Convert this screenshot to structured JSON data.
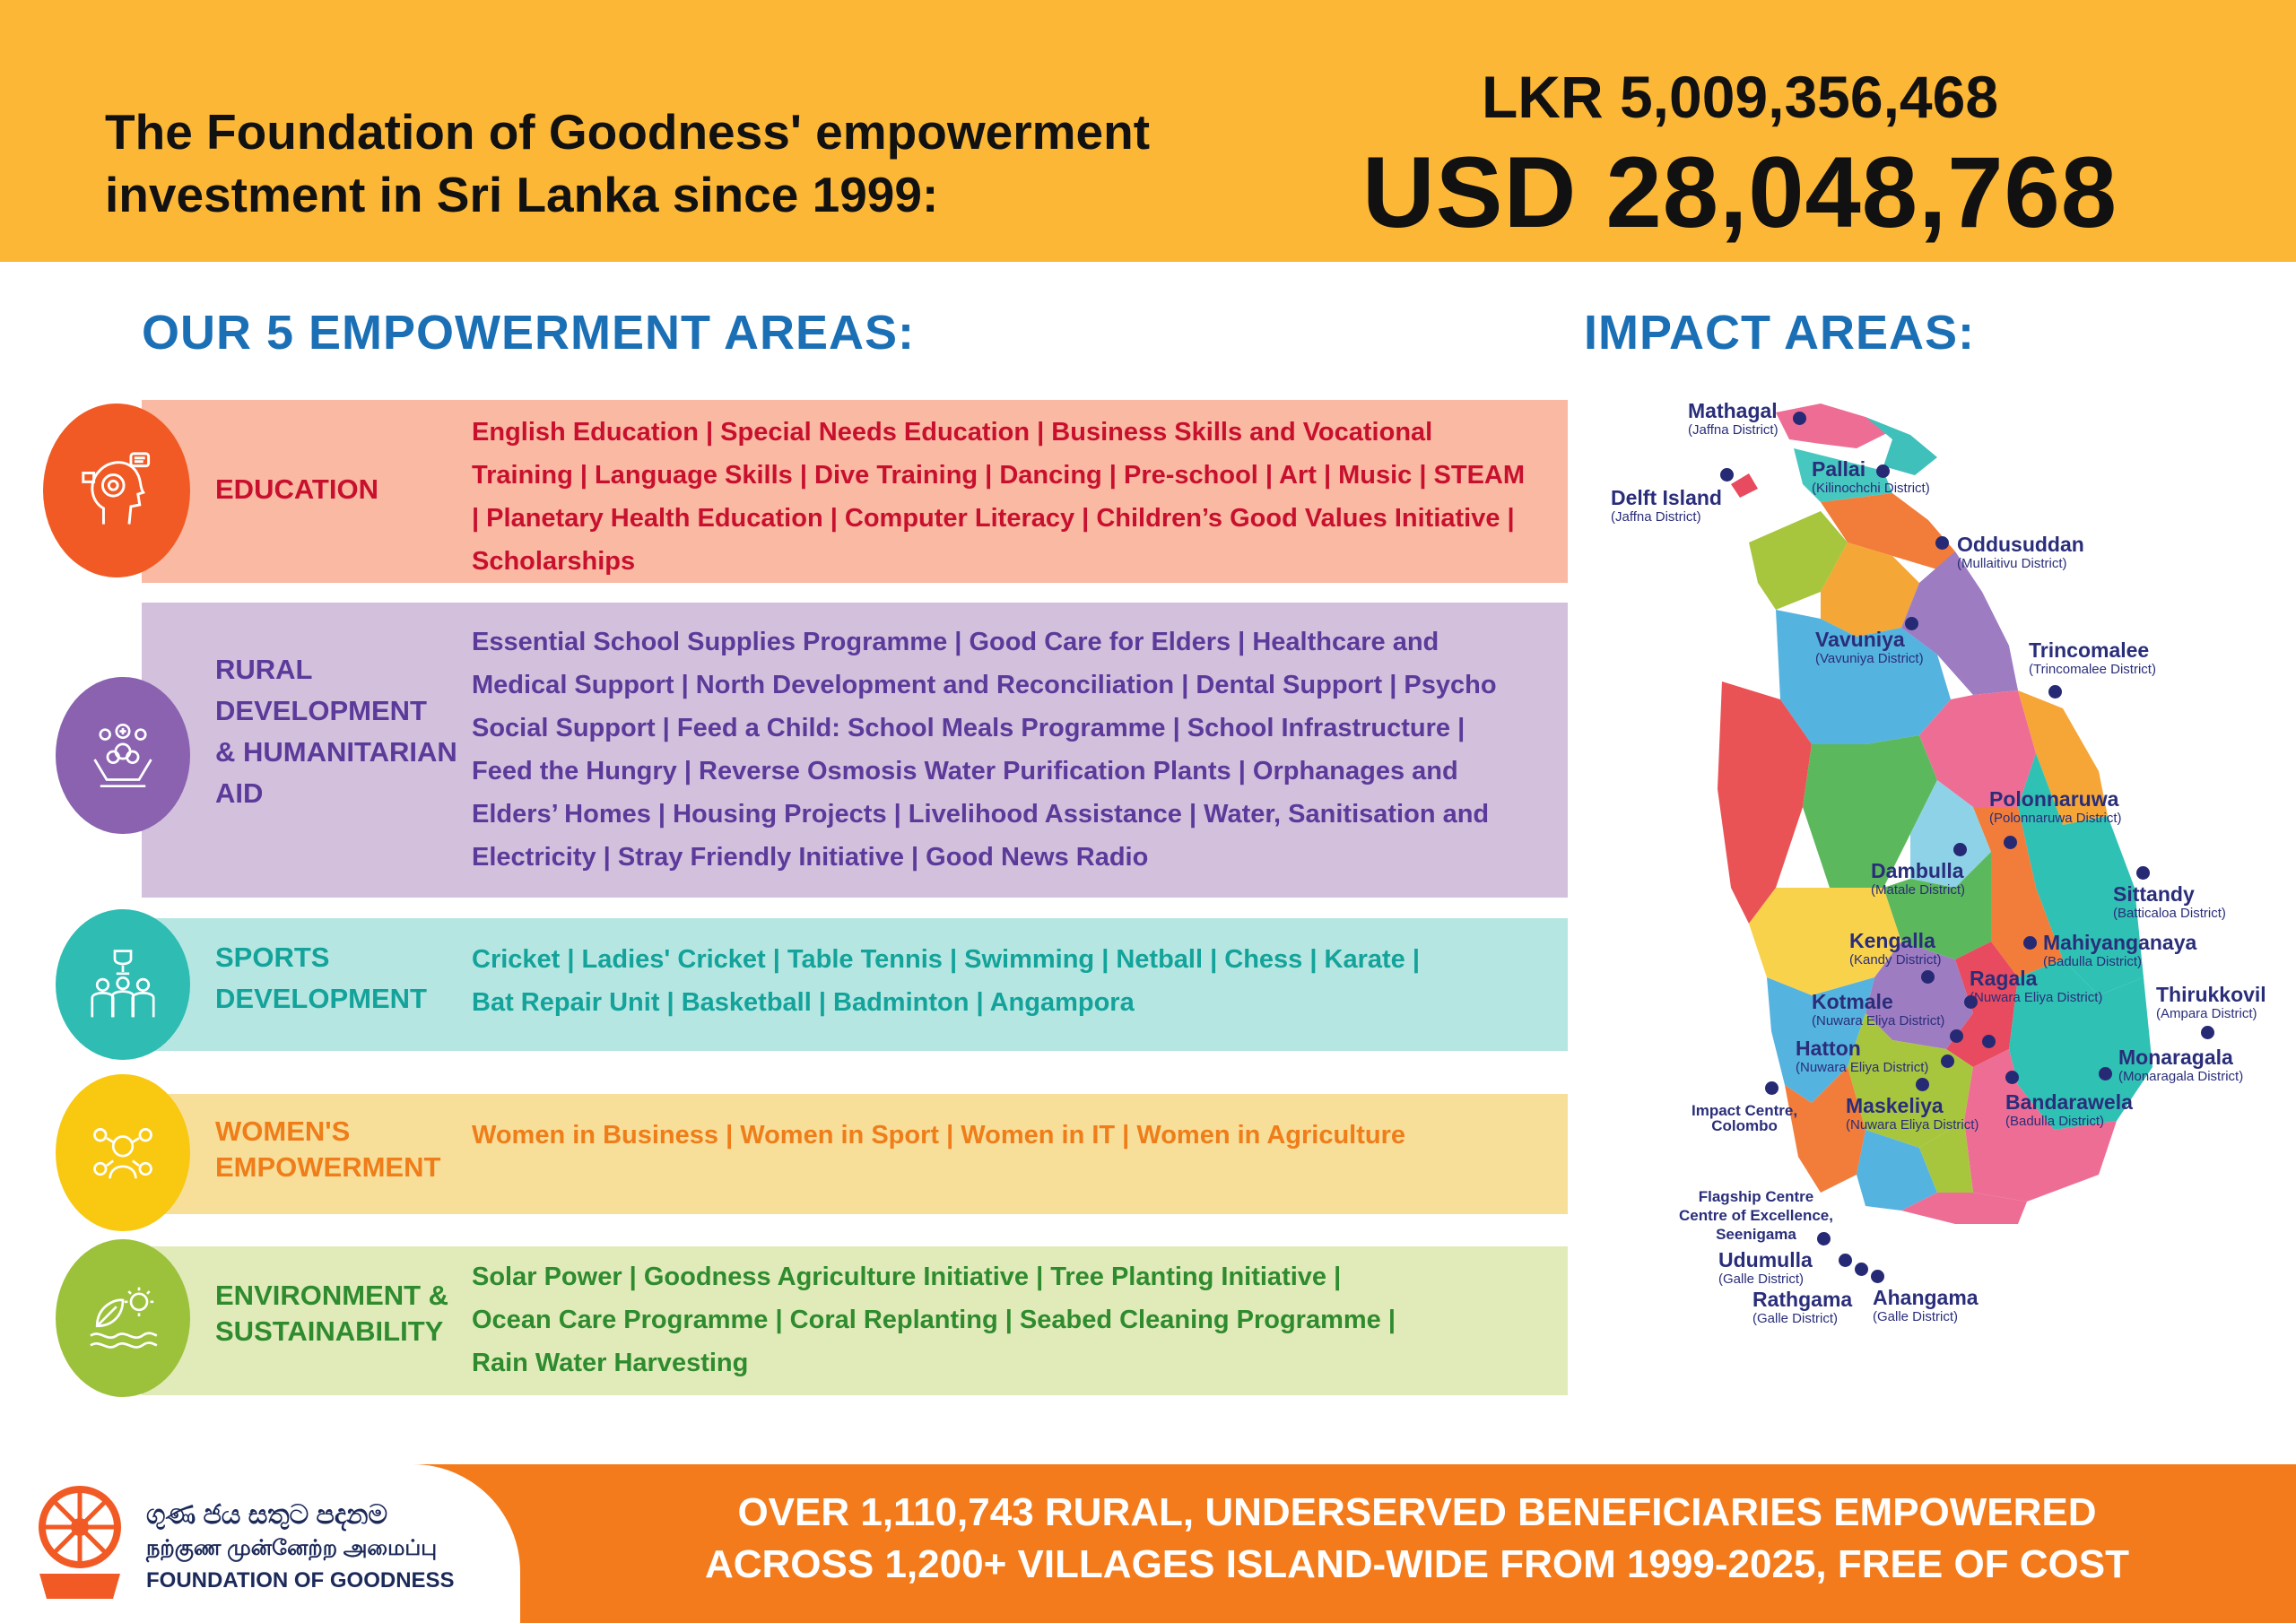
{
  "header": {
    "headline_line1": "The Foundation of Goodness' empowerment",
    "headline_line2": "investment in Sri Lanka since 1999:",
    "lkr": "LKR 5,009,356,468",
    "usd": "USD 28,048,768"
  },
  "empowerment_title": "OUR 5 EMPOWERMENT AREAS:",
  "impact_title": "IMPACT AREAS:",
  "areas": [
    {
      "label_lines": [
        "EDUCATION"
      ],
      "items_lines": [
        "English Education | Special Needs Education | Business Skills and Vocational",
        "Training | Language Skills | Dive Training | Dancing | Pre-school | Art | Music  | STEAM",
        "| Planetary Health Education | Computer Literacy | Children’s Good Values Initiative |",
        "Scholarships"
      ],
      "icon": "education-head-icon",
      "bg": "#f9b9a3",
      "text": "#c8102e",
      "circle": "#f15a24"
    },
    {
      "label_lines": [
        "RURAL",
        "DEVELOPMENT",
        "& HUMANITARIAN",
        "AID"
      ],
      "items_lines": [
        "Essential School Supplies Programme | Good Care for Elders  | Healthcare and",
        "Medical Support | North Development and Reconciliation | Dental Support | Psycho",
        "Social Support  | Feed a Child: School Meals Programme  | School Infrastructure |",
        "Feed the Hungry | Reverse Osmosis Water Purification Plants | Orphanages and",
        "Elders’ Homes | Housing Projects | Livelihood Assistance | Water, Sanitisation and",
        "Electricity | Stray Friendly Initiative | Good News Radio"
      ],
      "icon": "helping-hands-icon",
      "bg": "#d3c0dd",
      "text": "#5b3a9a",
      "circle": "#8a62b0"
    },
    {
      "label_lines": [
        "SPORTS",
        "DEVELOPMENT"
      ],
      "items_lines": [
        "Cricket | Ladies' Cricket | Table Tennis | Swimming | Netball | Chess | Karate |",
        "Bat Repair Unit | Basketball | Badminton | Angampora"
      ],
      "icon": "trophy-team-icon",
      "bg": "#b5e6e2",
      "text": "#13a39a",
      "circle": "#2ebcb3"
    },
    {
      "label_lines": [
        "WOMEN'S",
        "EMPOWERMENT"
      ],
      "items_lines": [
        "Women in Business | Women in Sport | Women in IT | Women in Agriculture"
      ],
      "icon": "women-icon",
      "bg": "#f7df9a",
      "text": "#ef7d1a",
      "circle": "#f9c811"
    },
    {
      "label_lines": [
        "ENVIRONMENT &",
        "SUSTAINABILITY"
      ],
      "items_lines": [
        "Solar Power | Goodness Agriculture Initiative | Tree Planting Initiative |",
        "Ocean Care Programme | Coral Replanting | Seabed Cleaning Programme |",
        "Rain Water Harvesting"
      ],
      "icon": "leaf-wave-sun-icon",
      "bg": "#e1eab9",
      "text": "#2e8b2e",
      "circle": "#9cc13b"
    }
  ],
  "locations": [
    {
      "name": "Mathagal",
      "district": "(Jaffna District)"
    },
    {
      "name": "Pallai",
      "district": "(Kilinochchi District)"
    },
    {
      "name": "Delft Island",
      "district": "(Jaffna District)"
    },
    {
      "name": "Oddusuddan",
      "district": "(Mullaitivu District)"
    },
    {
      "name": "Vavuniya",
      "district": "(Vavuniya District)"
    },
    {
      "name": "Trincomalee",
      "district": "(Trincomalee District)"
    },
    {
      "name": "Polonnaruwa",
      "district": "(Polonnaruwa District)"
    },
    {
      "name": "Dambulla",
      "district": "(Matale District)"
    },
    {
      "name": "Sittandy",
      "district": "(Batticaloa District)"
    },
    {
      "name": "Kengalla",
      "district": "(Kandy District)"
    },
    {
      "name": "Mahiyanganaya",
      "district": "(Badulla District)"
    },
    {
      "name": "Ragala",
      "district": "(Nuwara Eliya District)"
    },
    {
      "name": "Thirukkovil",
      "district": "(Ampara District)"
    },
    {
      "name": "Kotmale",
      "district": "(Nuwara Eliya District)"
    },
    {
      "name": "Hatton",
      "district": "(Nuwara Eliya District)"
    },
    {
      "name": "Monaragala",
      "district": "(Monaragala District)"
    },
    {
      "name": "Impact Centre,",
      "district": "Colombo"
    },
    {
      "name": "Maskeliya",
      "district": "(Nuwara Eliya District)"
    },
    {
      "name": "Bandarawela",
      "district": "(Badulla District)"
    },
    {
      "name": "Flagship Centre",
      "district": "Centre of Excellence,"
    },
    {
      "name": "Seenigama",
      "district": ""
    },
    {
      "name": "Udumulla",
      "district": "(Galle District)"
    },
    {
      "name": "Rathgama",
      "district": "(Galle District)"
    },
    {
      "name": "Ahangama",
      "district": "(Galle District)"
    }
  ],
  "footer": {
    "line1": "OVER 1,110,743 RURAL, UNDERSERVED BENEFICIARIES EMPOWERED",
    "line2": "ACROSS 1,200+ VILLAGES ISLAND-WIDE FROM 1999-2025, FREE OF COST",
    "logo_sinhala": "ගුණ ජය සතුට පදනම",
    "logo_tamil": "நற்குண முன்னேற்ற அமைப்பு",
    "logo_english": "FOUNDATION OF GOODNESS"
  },
  "colors": {
    "header_bg": "#fcb737",
    "title_blue": "#1a6fb5",
    "footer_orange": "#f47b1b",
    "map_dot": "#262a74"
  }
}
